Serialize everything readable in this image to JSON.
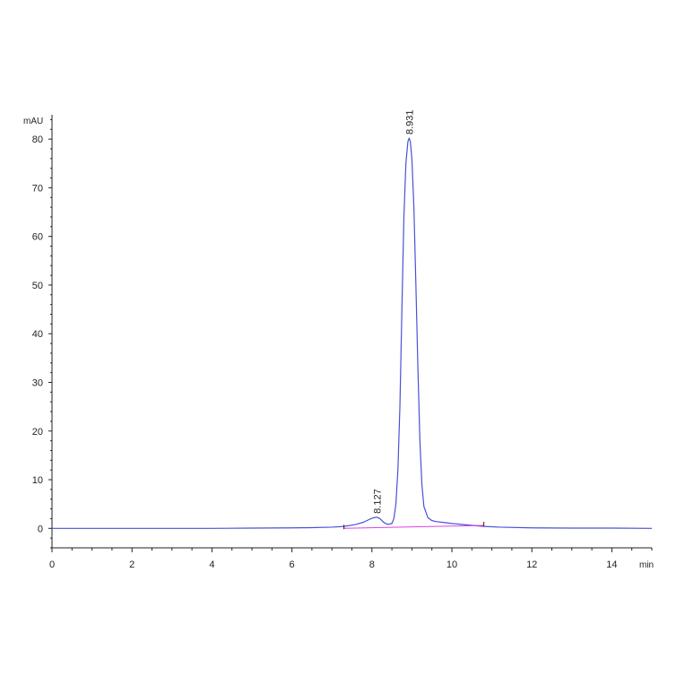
{
  "chart_data": {
    "type": "line",
    "title": "",
    "xlabel": "",
    "ylabel": "",
    "y_unit": "mAU",
    "x_unit": "min",
    "xlim": [
      0,
      15
    ],
    "ylim": [
      -4,
      85
    ],
    "x_ticks": [
      0,
      2,
      4,
      6,
      8,
      10,
      12,
      14
    ],
    "x_tick_labels": [
      "0",
      "2",
      "4",
      "6",
      "8",
      "10",
      "12",
      "14"
    ],
    "y_ticks": [
      0,
      10,
      20,
      30,
      40,
      50,
      60,
      70,
      80
    ],
    "y_tick_labels": [
      "0",
      "10",
      "20",
      "30",
      "40",
      "50",
      "60",
      "70",
      "80"
    ],
    "grid": false,
    "series": [
      {
        "color": "#4a52d6",
        "x": [
          0,
          2,
          4,
          5,
          6,
          6.5,
          7,
          7.3,
          7.6,
          7.8,
          7.95,
          8.05,
          8.127,
          8.2,
          8.3,
          8.4,
          8.5,
          8.55,
          8.6,
          8.65,
          8.7,
          8.75,
          8.8,
          8.85,
          8.9,
          8.931,
          8.96,
          9.0,
          9.05,
          9.1,
          9.15,
          9.2,
          9.25,
          9.3,
          9.4,
          9.5,
          9.6,
          9.8,
          10.0,
          10.4,
          10.8,
          11.2,
          12,
          13,
          14,
          15
        ],
        "y": [
          0,
          0,
          0,
          0.05,
          0.1,
          0.15,
          0.25,
          0.4,
          0.8,
          1.3,
          1.9,
          2.2,
          2.3,
          2.0,
          1.2,
          0.8,
          1.0,
          2.0,
          5.0,
          12.0,
          25.0,
          45.0,
          64.0,
          75.0,
          79.5,
          80.2,
          79.5,
          76.0,
          66.0,
          50.0,
          33.0,
          18.0,
          9.0,
          4.5,
          2.2,
          1.6,
          1.4,
          1.2,
          1.0,
          0.7,
          0.4,
          0.25,
          0.1,
          0.05,
          0.05,
          0
        ]
      },
      {
        "color": "#e040e0",
        "x": [
          7.3,
          10.8
        ],
        "y": [
          0,
          0.6
        ]
      }
    ],
    "annotations": [
      {
        "text": "8.127",
        "x": 8.127,
        "y": 2.3
      },
      {
        "text": "8.931",
        "x": 8.931,
        "y": 80.2
      }
    ]
  }
}
